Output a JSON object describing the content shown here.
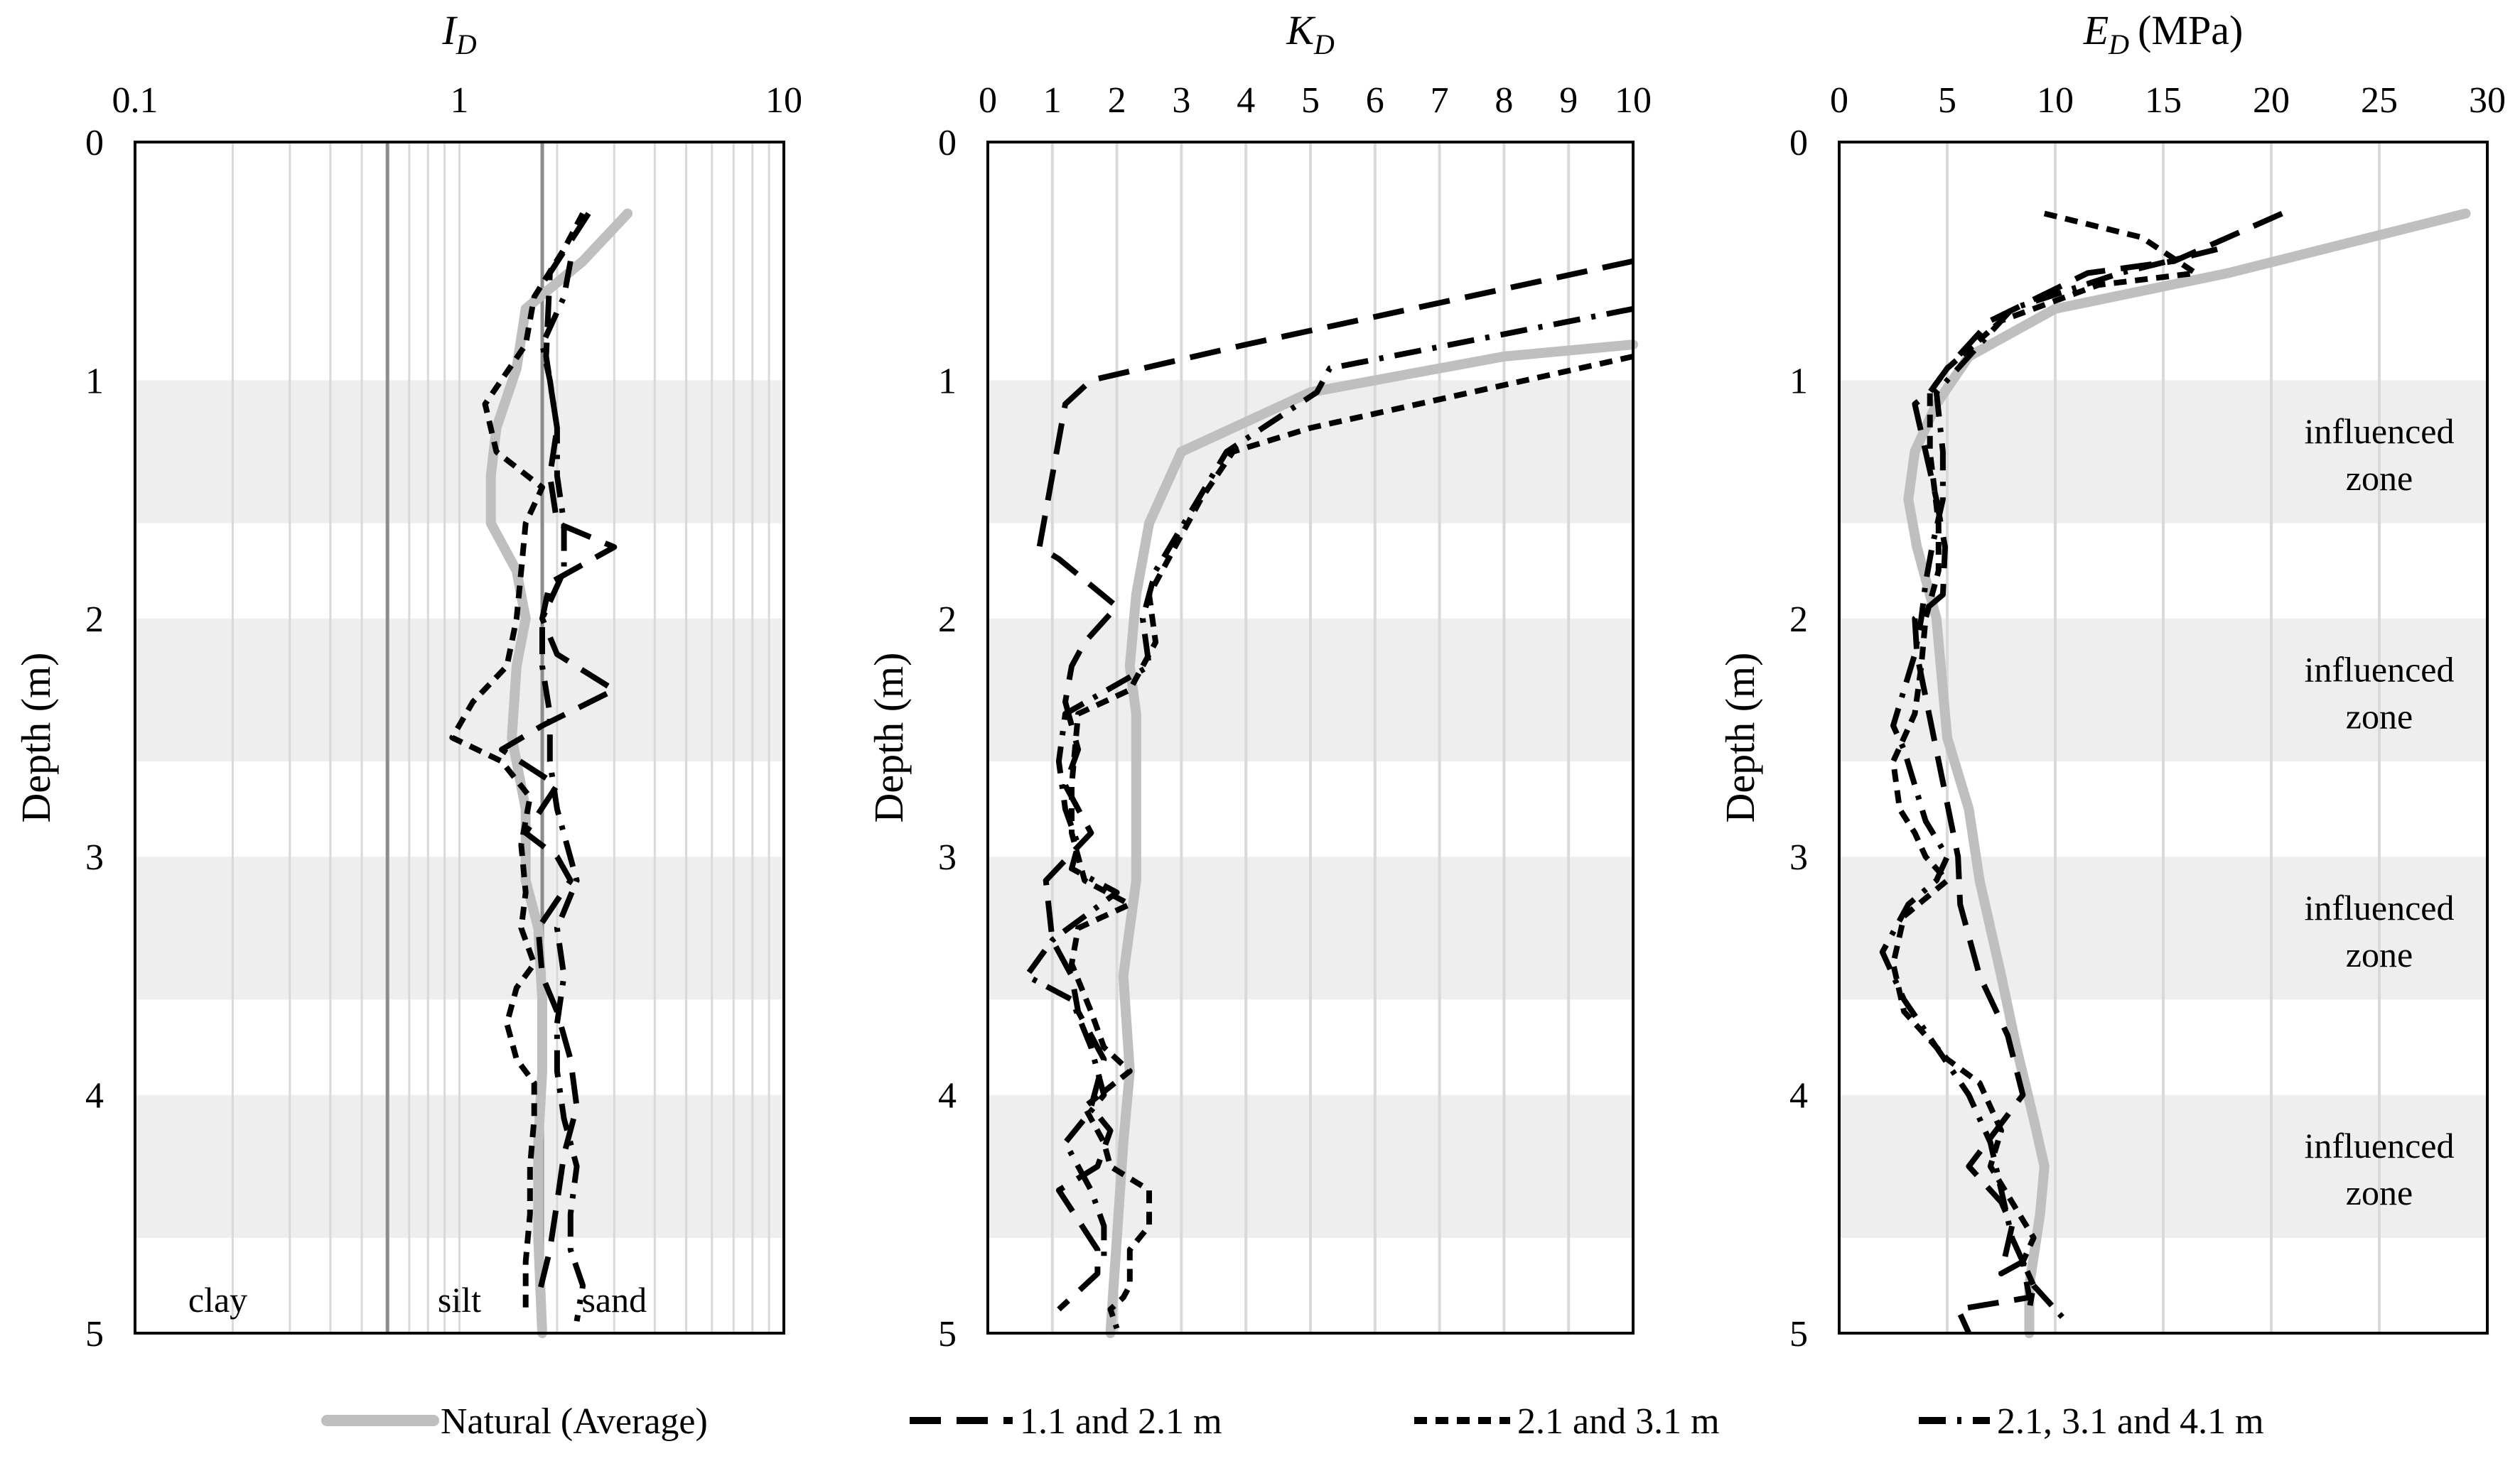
{
  "chart_data": [
    {
      "type": "line",
      "title": "I_D",
      "title_main": "I",
      "title_sub": "D",
      "xscale": "log",
      "xlim": [
        0.1,
        10
      ],
      "xticks": [
        "0.1",
        "1",
        "10"
      ],
      "xtick_values": [
        0.1,
        1,
        10
      ],
      "ylabel": "Depth (m)",
      "ylim": [
        0,
        5
      ],
      "yticks": [
        "0",
        "1",
        "2",
        "3",
        "4",
        "5"
      ],
      "y_inverted": true,
      "reference_lines": [
        0.6,
        1.8
      ],
      "zone_labels": [
        "clay",
        "silt",
        "sand"
      ],
      "series": [
        {
          "name": "Natural (Average)",
          "style": "natural",
          "x": [
            3.3,
            2.4,
            1.6,
            1.5,
            1.3,
            1.25,
            1.25,
            1.5,
            1.6,
            1.5,
            1.45,
            1.6,
            1.6,
            1.75,
            1.8,
            1.8,
            1.75,
            1.75,
            1.8
          ],
          "y": [
            0.3,
            0.5,
            0.7,
            0.95,
            1.2,
            1.4,
            1.6,
            1.8,
            2.0,
            2.2,
            2.5,
            2.8,
            3.1,
            3.3,
            3.6,
            3.9,
            4.2,
            4.6,
            5.0
          ]
        },
        {
          "name": "1.1 and 2.1 m",
          "style": "long-dash",
          "x": [
            2.5,
            1.9,
            1.85,
            2.0,
            1.9,
            2.0,
            3.0,
            1.9,
            1.8,
            2.0,
            3.0,
            1.8,
            1.35,
            2.0,
            1.6,
            2.0,
            2.2,
            1.75,
            1.8,
            2.0,
            2.2,
            2.3,
            2.1,
            2.0,
            1.9,
            1.75
          ],
          "y": [
            0.3,
            0.55,
            0.9,
            1.2,
            1.4,
            1.6,
            1.7,
            1.85,
            2.0,
            2.15,
            2.3,
            2.45,
            2.55,
            2.7,
            2.9,
            3.0,
            3.1,
            3.3,
            3.5,
            3.65,
            3.85,
            4.05,
            4.25,
            4.45,
            4.65,
            4.85
          ]
        },
        {
          "name": "2.1 and 3.1 m",
          "style": "short-dash",
          "x": [
            2.4,
            2.1,
            1.7,
            1.6,
            1.2,
            1.3,
            1.8,
            1.6,
            1.55,
            1.5,
            1.4,
            1.1,
            0.95,
            1.35,
            1.65,
            1.55,
            1.6,
            1.55,
            1.7,
            1.5,
            1.4,
            1.5,
            1.7,
            1.7,
            1.65,
            1.65,
            1.6,
            1.6
          ],
          "y": [
            0.3,
            0.45,
            0.65,
            0.85,
            1.1,
            1.3,
            1.45,
            1.6,
            1.8,
            2.0,
            2.2,
            2.35,
            2.5,
            2.6,
            2.75,
            2.95,
            3.15,
            3.3,
            3.45,
            3.55,
            3.7,
            3.85,
            3.95,
            4.1,
            4.3,
            4.5,
            4.7,
            4.9
          ]
        },
        {
          "name": "2.1, 3.1 and 4.1 m",
          "style": "dash-dot",
          "x": [
            2.2,
            2.1,
            1.8,
            1.9,
            2.0,
            2.0,
            2.1,
            2.1,
            1.8,
            1.8,
            1.9,
            1.9,
            2.0,
            2.3,
            2.0,
            2.1,
            2.0,
            2.0,
            2.1,
            2.3,
            2.2,
            2.2,
            2.4,
            2.3
          ],
          "y": [
            0.5,
            0.65,
            0.85,
            1.0,
            1.2,
            1.4,
            1.6,
            1.8,
            2.0,
            2.2,
            2.4,
            2.6,
            2.8,
            3.1,
            3.3,
            3.5,
            3.7,
            3.9,
            4.1,
            4.3,
            4.5,
            4.65,
            4.8,
            4.95
          ]
        }
      ]
    },
    {
      "type": "line",
      "title": "K_D",
      "title_main": "K",
      "title_sub": "D",
      "xlim": [
        0,
        10
      ],
      "xticks": [
        "0",
        "1",
        "2",
        "3",
        "4",
        "5",
        "6",
        "7",
        "8",
        "9",
        "10"
      ],
      "xtick_values": [
        0,
        1,
        2,
        3,
        4,
        5,
        6,
        7,
        8,
        9,
        10
      ],
      "ylabel": "Depth (m)",
      "ylim": [
        0,
        5
      ],
      "yticks": [
        "0",
        "1",
        "2",
        "3",
        "4",
        "5"
      ],
      "y_inverted": true,
      "series": [
        {
          "name": "Natural (Average)",
          "style": "natural",
          "x": [
            10.0,
            8.0,
            5.0,
            3.0,
            2.5,
            2.3,
            2.2,
            2.3,
            2.3,
            2.3,
            2.1,
            2.2,
            2.1,
            2.0,
            1.9
          ],
          "y": [
            0.85,
            0.9,
            1.05,
            1.3,
            1.6,
            1.9,
            2.2,
            2.4,
            2.7,
            3.1,
            3.5,
            3.9,
            4.2,
            4.6,
            5.0
          ]
        },
        {
          "name": "1.1 and 2.1 m",
          "style": "long-dash",
          "x": [
            10.0,
            4.0,
            1.6,
            1.2,
            0.8,
            1.1,
            2.0,
            1.5,
            1.3,
            1.2,
            1.4,
            1.2,
            1.6,
            0.9,
            1.0,
            1.3,
            1.4,
            1.6,
            1.8,
            1.6,
            1.9,
            1.7,
            1.1,
            1.7,
            1.7,
            1.1
          ],
          "y": [
            0.5,
            0.85,
            1.0,
            1.1,
            1.7,
            1.75,
            1.95,
            2.1,
            2.2,
            2.35,
            2.55,
            2.7,
            2.9,
            3.1,
            3.35,
            3.5,
            3.65,
            3.75,
            3.85,
            4.05,
            4.15,
            4.3,
            4.4,
            4.65,
            4.75,
            4.9
          ]
        },
        {
          "name": "2.1 and 3.1 m",
          "style": "short-dash",
          "x": [
            10.0,
            5.0,
            3.8,
            3.3,
            2.5,
            2.6,
            2.2,
            1.4,
            1.3,
            1.3,
            1.4,
            1.5,
            2.2,
            1.4,
            1.3,
            1.6,
            1.8,
            2.2,
            1.5,
            1.8,
            1.9,
            2.5,
            2.5,
            2.2,
            2.2,
            2.2,
            2.1,
            1.9,
            2.0
          ],
          "y": [
            0.9,
            1.2,
            1.3,
            1.5,
            1.9,
            2.1,
            2.3,
            2.4,
            2.7,
            2.9,
            3.0,
            3.1,
            3.2,
            3.3,
            3.45,
            3.65,
            3.8,
            3.9,
            4.05,
            4.2,
            4.3,
            4.4,
            4.55,
            4.65,
            4.75,
            4.8,
            4.85,
            4.9,
            4.98
          ]
        },
        {
          "name": "2.1, 3.1 and 4.1 m",
          "style": "dash-dot",
          "x": [
            10.0,
            5.3,
            5.1,
            3.7,
            2.6,
            2.4,
            2.5,
            1.2,
            1.1,
            1.2,
            1.4,
            1.3,
            2.0,
            1.0,
            0.6,
            1.3,
            1.6,
            1.8,
            1.2,
            1.6,
            1.8,
            1.8
          ],
          "y": [
            0.7,
            0.95,
            1.05,
            1.3,
            1.8,
            2.0,
            2.2,
            2.4,
            2.6,
            2.8,
            2.95,
            3.05,
            3.15,
            3.35,
            3.5,
            3.6,
            3.8,
            4.0,
            4.2,
            4.4,
            4.55,
            4.7
          ]
        }
      ]
    },
    {
      "type": "line",
      "title": "E_D (MPa)",
      "title_main": "E",
      "title_sub": "D",
      "title_unit": "(MPa)",
      "xlim": [
        0,
        30
      ],
      "xticks": [
        "0",
        "5",
        "10",
        "15",
        "20",
        "25",
        "30"
      ],
      "xtick_values": [
        0,
        5,
        10,
        15,
        20,
        25,
        30
      ],
      "ylabel": "Depth (m)",
      "ylim": [
        0,
        5
      ],
      "yticks": [
        "0",
        "1",
        "2",
        "3",
        "4",
        "5"
      ],
      "y_inverted": true,
      "annotations": [
        {
          "lines": [
            "influenced",
            "zone"
          ],
          "y_center": 1.3
        },
        {
          "lines": [
            "influenced",
            "zone"
          ],
          "y_center": 2.3
        },
        {
          "lines": [
            "influenced",
            "zone"
          ],
          "y_center": 3.3
        },
        {
          "lines": [
            "influenced",
            "zone"
          ],
          "y_center": 4.3
        }
      ],
      "shaded_bands": [
        [
          1.0,
          1.6
        ],
        [
          2.0,
          2.6
        ],
        [
          3.0,
          3.6
        ],
        [
          4.0,
          4.6
        ]
      ],
      "series": [
        {
          "name": "Natural (Average)",
          "style": "natural",
          "x": [
            29.0,
            18.0,
            10.0,
            6.0,
            4.5,
            3.5,
            3.2,
            3.6,
            4.5,
            4.8,
            5.0,
            6.0,
            6.5,
            7.5,
            8.2,
            9.0,
            9.5,
            9.3,
            8.8,
            8.8
          ],
          "y": [
            0.3,
            0.55,
            0.7,
            0.9,
            1.1,
            1.3,
            1.5,
            1.7,
            2.0,
            2.3,
            2.5,
            2.8,
            3.1,
            3.5,
            3.8,
            4.1,
            4.3,
            4.5,
            4.8,
            5.0
          ]
        },
        {
          "name": "1.1 and 2.1 m",
          "style": "long-dash",
          "x": [
            20.5,
            15.5,
            11.5,
            7.0,
            5.0,
            4.2,
            3.5,
            4.5,
            4.9,
            4.8,
            3.5,
            3.6,
            5.5,
            5.6,
            6.5,
            7.8,
            8.5,
            6.0,
            7.5,
            8.0,
            7.5,
            8.5,
            8.8,
            5.5,
            6.0
          ],
          "y": [
            0.3,
            0.5,
            0.55,
            0.75,
            0.95,
            1.05,
            1.1,
            1.5,
            1.7,
            1.9,
            2.0,
            2.15,
            3.0,
            3.2,
            3.5,
            3.75,
            4.0,
            4.3,
            4.45,
            4.55,
            4.75,
            4.7,
            4.85,
            4.9,
            5.0
          ]
        },
        {
          "name": "2.1 and 3.1 m",
          "style": "short-dash",
          "x": [
            9.5,
            14.0,
            16.5,
            12.0,
            7.5,
            5.0,
            4.2,
            4.2,
            4.6,
            4.6,
            4.0,
            3.8,
            3.5,
            2.5,
            2.8,
            3.5,
            4.0,
            5.0,
            3.0,
            2.5,
            3.0,
            5.0,
            6.5,
            7.5,
            7.0,
            8.0,
            9.0,
            8.5,
            9.0,
            8.8
          ],
          "y": [
            0.3,
            0.4,
            0.55,
            0.6,
            0.75,
            0.95,
            1.05,
            1.3,
            1.6,
            1.8,
            2.0,
            2.2,
            2.4,
            2.6,
            2.8,
            2.9,
            3.0,
            3.1,
            3.25,
            3.45,
            3.65,
            3.85,
            3.95,
            4.15,
            4.3,
            4.45,
            4.6,
            4.7,
            4.8,
            4.9
          ]
        },
        {
          "name": "2.1, 3.1 and 4.1 m",
          "style": "dash-dot",
          "x": [
            17.5,
            13.0,
            8.0,
            6.0,
            4.5,
            4.8,
            4.8,
            4.3,
            4.0,
            3.8,
            3.5,
            3.0,
            2.5,
            3.0,
            3.5,
            4.0,
            5.0,
            4.5,
            3.2,
            2.0,
            3.0,
            4.5,
            6.0,
            7.0,
            7.5,
            8.0,
            9.0,
            10.5
          ],
          "y": [
            0.45,
            0.55,
            0.7,
            0.9,
            1.05,
            1.3,
            1.5,
            1.7,
            1.85,
            2.0,
            2.15,
            2.3,
            2.45,
            2.55,
            2.7,
            2.85,
            3.0,
            3.1,
            3.2,
            3.4,
            3.6,
            3.8,
            4.0,
            4.2,
            4.4,
            4.6,
            4.8,
            4.95
          ]
        }
      ]
    }
  ],
  "legend": {
    "placement": "bottom",
    "items": [
      {
        "label": "Natural (Average)",
        "style": "natural"
      },
      {
        "label": "1.1 and 2.1 m",
        "style": "long-dash"
      },
      {
        "label": "2.1 and 3.1 m",
        "style": "short-dash"
      },
      {
        "label": "2.1, 3.1 and 4.1 m",
        "style": "dash-dot"
      }
    ]
  },
  "colors": {
    "natural": "#bfbfbf",
    "series": "#000000",
    "grid": "#d9d9d9",
    "band": "#eeeeee",
    "reference_line": "#8c8c8c"
  }
}
